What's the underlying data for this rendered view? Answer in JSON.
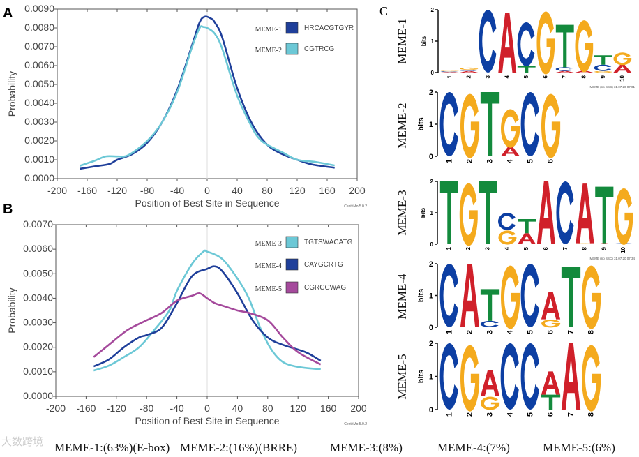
{
  "panels": {
    "a": "A",
    "b": "B",
    "c": "C"
  },
  "colors": {
    "A": "#d0202a",
    "C": "#0d3fa3",
    "G": "#f4aa1d",
    "T": "#138a3c"
  },
  "chart_data": [
    {
      "type": "line",
      "panel": "A",
      "xlabel": "Position of Best Site in Sequence",
      "ylabel": "Probability",
      "xlim": [
        -200,
        200
      ],
      "ylim": [
        0,
        0.009
      ],
      "xticks": [
        -200,
        -160,
        -120,
        -80,
        -40,
        0,
        40,
        80,
        120,
        160,
        200
      ],
      "yticks": [
        "0.0000",
        "0.0010",
        "0.0020",
        "0.0030",
        "0.0040",
        "0.0050",
        "0.0060",
        "0.0070",
        "0.0080",
        "0.0090"
      ],
      "credit": "CentriMo 5.0.2",
      "legend_position": "top-right",
      "series": [
        {
          "name": "MEME-1",
          "motif": "HRCACGTGYR",
          "color": "#1f3f9a",
          "x": [
            -170,
            -150,
            -130,
            -120,
            -100,
            -80,
            -60,
            -40,
            -20,
            -10,
            -3,
            5,
            10,
            20,
            40,
            60,
            80,
            100,
            120,
            140,
            170
          ],
          "y": [
            0.00052,
            0.00065,
            0.00078,
            0.001,
            0.0013,
            0.0019,
            0.003,
            0.0047,
            0.0071,
            0.0083,
            0.0086,
            0.0085,
            0.0083,
            0.0075,
            0.0048,
            0.0029,
            0.0018,
            0.0013,
            0.001,
            0.00075,
            0.00058
          ]
        },
        {
          "name": "MEME-2",
          "motif": "CGTRCG",
          "color": "#6cc8d6",
          "x": [
            -170,
            -150,
            -135,
            -120,
            -105,
            -80,
            -60,
            -40,
            -20,
            -10,
            -5,
            0,
            10,
            20,
            40,
            60,
            70,
            80,
            100,
            120,
            145,
            170
          ],
          "y": [
            0.00068,
            0.00095,
            0.00118,
            0.00118,
            0.00125,
            0.002,
            0.003,
            0.0046,
            0.007,
            0.008,
            0.00805,
            0.008,
            0.0077,
            0.0069,
            0.0044,
            0.0027,
            0.0021,
            0.0018,
            0.0014,
            0.001,
            0.00088,
            0.0007
          ]
        }
      ]
    },
    {
      "type": "line",
      "panel": "B",
      "xlabel": "Position of Best Site in Sequence",
      "ylabel": "Probability",
      "xlim": [
        -200,
        200
      ],
      "ylim": [
        0,
        0.007
      ],
      "xticks": [
        -200,
        -160,
        -120,
        -80,
        -40,
        0,
        40,
        80,
        120,
        160,
        200
      ],
      "yticks": [
        "0.0000",
        "0.0010",
        "0.0020",
        "0.0030",
        "0.0040",
        "0.0050",
        "0.0060",
        "0.0070"
      ],
      "credit": "CentriMo 5.0.2",
      "legend_position": "top-right",
      "series": [
        {
          "name": "MEME-3",
          "motif": "TGTSWACATG",
          "color": "#6cc8d6",
          "x": [
            -150,
            -130,
            -110,
            -90,
            -70,
            -50,
            -40,
            -20,
            -5,
            0,
            20,
            40,
            55,
            70,
            85,
            100,
            120,
            150
          ],
          "y": [
            0.00105,
            0.00125,
            0.0016,
            0.002,
            0.0027,
            0.0035,
            0.0043,
            0.0054,
            0.0059,
            0.0059,
            0.0056,
            0.0048,
            0.004,
            0.0028,
            0.0019,
            0.0014,
            0.0012,
            0.0011
          ]
        },
        {
          "name": "MEME-4",
          "motif": "CAYGCRTG",
          "color": "#1f3f9a",
          "x": [
            -150,
            -130,
            -110,
            -90,
            -80,
            -60,
            -40,
            -20,
            0,
            10,
            20,
            40,
            60,
            80,
            100,
            130,
            150
          ],
          "y": [
            0.00122,
            0.0015,
            0.002,
            0.0024,
            0.0025,
            0.0028,
            0.0038,
            0.0049,
            0.0052,
            0.0053,
            0.0051,
            0.0042,
            0.0031,
            0.0024,
            0.0021,
            0.0018,
            0.00145
          ]
        },
        {
          "name": "MEME-5",
          "motif": "CGRCCWAG",
          "color": "#a54a9c",
          "x": [
            -150,
            -130,
            -110,
            -100,
            -80,
            -60,
            -40,
            -20,
            -10,
            0,
            10,
            20,
            40,
            55,
            80,
            100,
            120,
            150
          ],
          "y": [
            0.0016,
            0.0021,
            0.0026,
            0.0028,
            0.0031,
            0.0034,
            0.0039,
            0.0041,
            0.0042,
            0.004,
            0.0038,
            0.0037,
            0.0035,
            0.0034,
            0.0031,
            0.0024,
            0.0018,
            0.0013
          ]
        }
      ]
    }
  ],
  "logos": [
    {
      "name": "MEME-1",
      "ylabel": "bits",
      "ticks": [
        "0",
        "1",
        "2"
      ],
      "footnote": "MEME (no SSC) 31.07.20 07:01",
      "columns": [
        [
          [
            "A",
            0.02
          ],
          [
            "C",
            0.02
          ],
          [
            "G",
            0.02
          ]
        ],
        [
          [
            "A",
            0.05
          ],
          [
            "C",
            0.04
          ],
          [
            "G",
            0.07
          ]
        ],
        [
          [
            "C",
            2.0
          ]
        ],
        [
          [
            "A",
            1.9
          ]
        ],
        [
          [
            "T",
            0.2
          ],
          [
            "C",
            1.4
          ]
        ],
        [
          [
            "G",
            2.0
          ]
        ],
        [
          [
            "A",
            0.05
          ],
          [
            "C",
            0.12
          ],
          [
            "T",
            1.35
          ]
        ],
        [
          [
            "A",
            0.06
          ],
          [
            "G",
            1.65
          ]
        ],
        [
          [
            "G",
            0.05
          ],
          [
            "C",
            0.2
          ],
          [
            "T",
            0.3
          ]
        ],
        [
          [
            "A",
            0.25
          ],
          [
            "G",
            0.4
          ]
        ]
      ]
    },
    {
      "name": "MEME-2",
      "ylabel": "bits",
      "ticks": [
        "0",
        "1",
        "2"
      ],
      "footnote": "",
      "columns": [
        [
          [
            "C",
            2.0
          ]
        ],
        [
          [
            "G",
            2.0
          ]
        ],
        [
          [
            "T",
            2.0
          ]
        ],
        [
          [
            "A",
            0.3
          ],
          [
            "G",
            1.2
          ]
        ],
        [
          [
            "C",
            2.0
          ]
        ],
        [
          [
            "G",
            2.0
          ]
        ]
      ]
    },
    {
      "name": "MEME-3",
      "ylabel": "bits",
      "ticks": [
        "0",
        "1",
        "2"
      ],
      "footnote": "MEME (no SSC) 31.07.20 07:34",
      "columns": [
        [
          [
            "T",
            2.0
          ]
        ],
        [
          [
            "G",
            2.0
          ]
        ],
        [
          [
            "T",
            2.0
          ]
        ],
        [
          [
            "G",
            0.45
          ],
          [
            "C",
            0.55
          ]
        ],
        [
          [
            "A",
            0.35
          ],
          [
            "T",
            0.45
          ]
        ],
        [
          [
            "A",
            2.0
          ]
        ],
        [
          [
            "C",
            2.0
          ]
        ],
        [
          [
            "G",
            0.03
          ],
          [
            "A",
            1.9
          ]
        ],
        [
          [
            "A",
            0.03
          ],
          [
            "T",
            1.8
          ]
        ],
        [
          [
            "C",
            0.03
          ],
          [
            "G",
            1.8
          ]
        ]
      ]
    },
    {
      "name": "MEME-4",
      "ylabel": "bits",
      "ticks": [
        "0",
        "1",
        "2"
      ],
      "footnote": "",
      "columns": [
        [
          [
            "C",
            2.0
          ]
        ],
        [
          [
            "A",
            2.0
          ]
        ],
        [
          [
            "C",
            0.2
          ],
          [
            "T",
            1.0
          ]
        ],
        [
          [
            "G",
            2.0
          ]
        ],
        [
          [
            "C",
            2.0
          ]
        ],
        [
          [
            "G",
            0.25
          ],
          [
            "A",
            0.85
          ]
        ],
        [
          [
            "T",
            1.9
          ]
        ],
        [
          [
            "G",
            2.0
          ]
        ]
      ]
    },
    {
      "name": "MEME-5",
      "ylabel": "bits",
      "ticks": [
        "0",
        "1",
        "2"
      ],
      "footnote": "",
      "columns": [
        [
          [
            "C",
            2.0
          ]
        ],
        [
          [
            "G",
            2.0
          ]
        ],
        [
          [
            "G",
            0.4
          ],
          [
            "A",
            0.8
          ]
        ],
        [
          [
            "C",
            2.0
          ]
        ],
        [
          [
            "C",
            2.0
          ]
        ],
        [
          [
            "T",
            0.45
          ],
          [
            "A",
            0.7
          ]
        ],
        [
          [
            "A",
            2.0
          ]
        ],
        [
          [
            "G",
            2.0
          ]
        ]
      ]
    }
  ],
  "captions": [
    "MEME-1:(63%)(E-box)",
    "MEME-2:(16%)(BRRE)",
    "MEME-3:(8%)",
    "MEME-4:(7%)",
    "MEME-5:(6%)"
  ],
  "watermark": "大数跨境"
}
